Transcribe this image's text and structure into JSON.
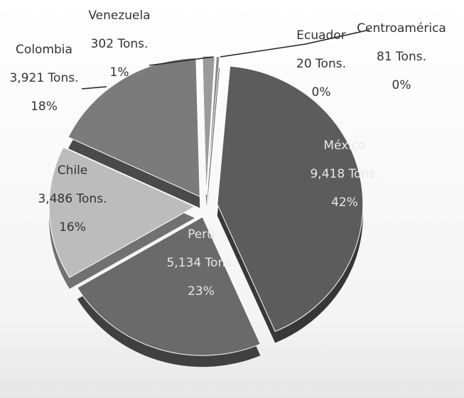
{
  "chart_data": {
    "type": "pie",
    "categories": [
      "México",
      "Perú",
      "Chile",
      "Colombia",
      "Venezuela",
      "Ecuador",
      "Centroamérica"
    ],
    "values": [
      9418,
      5134,
      3486,
      3921,
      302,
      20,
      81
    ],
    "value_labels": [
      "9,418 Tons.",
      "5,134 Tons.",
      "3,486 Tons.",
      "3,921 Tons.",
      "302 Tons.",
      "20 Tons.",
      "81 Tons."
    ],
    "percent_labels": [
      "42%",
      "23%",
      "16%",
      "18%",
      "1%",
      "0%",
      "0%"
    ],
    "colors": [
      "#5c5c5c",
      "#6a6a6a",
      "#bcbcbc",
      "#7b7b7b",
      "#9a9a9a",
      "#b0b0b0",
      "#8a8a8a"
    ]
  }
}
